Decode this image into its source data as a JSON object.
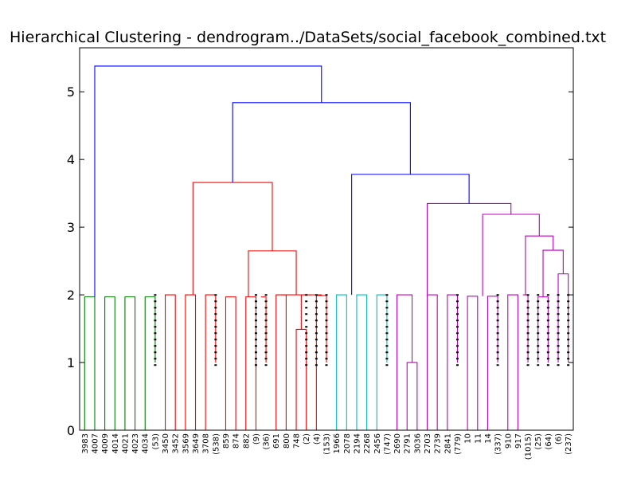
{
  "chart_data": {
    "type": "dendrogram",
    "title": "Hierarchical Clustering - dendrogram../DataSets/social_facebook_combined.txt",
    "xlabel": "",
    "ylabel": "",
    "ylim": [
      0,
      5.65
    ],
    "yticks": [
      0,
      1,
      2,
      3,
      4,
      5
    ],
    "leaf_labels": [
      "3983",
      "4007",
      "4009",
      "4014",
      "4021",
      "4023",
      "4034",
      "(53)",
      "3450",
      "3452",
      "3569",
      "3649",
      "3708",
      "(538)",
      "859",
      "874",
      "882",
      "(9)",
      "(36)",
      "691",
      "800",
      "748",
      "(2)",
      "(4)",
      "(153)",
      "1966",
      "2078",
      "2194",
      "2268",
      "2456",
      "(747)",
      "2690",
      "2791",
      "3036",
      "2703",
      "2739",
      "2841",
      "(779)",
      "10",
      "11",
      "14",
      "(337)",
      "910",
      "917",
      "(1015)",
      "(25)",
      "(64)",
      "(6)",
      "(237)"
    ],
    "colors": {
      "green": "#008000",
      "red": "#ff0000",
      "cyan": "#00bfbf",
      "magenta": "#bf00bf",
      "blue": "#0000ff"
    },
    "links": [
      {
        "a": 0,
        "b": 1,
        "ha": 0,
        "hb": 0,
        "h": 1.97,
        "color": "green"
      },
      {
        "a": 2,
        "b": 3,
        "ha": 0,
        "hb": 0,
        "h": 1.97,
        "color": "green"
      },
      {
        "a": 4,
        "b": 5,
        "ha": 0,
        "hb": 0,
        "h": 1.97,
        "color": "green"
      },
      {
        "a": 6,
        "b": 7,
        "ha": 0,
        "hb": 1.0,
        "h": 1.97,
        "color": "green"
      },
      {
        "a": 8,
        "b": 9,
        "ha": 0,
        "hb": 0,
        "h": 2.0,
        "color": "red"
      },
      {
        "a": 10,
        "b": 11,
        "ha": 0,
        "hb": 0,
        "h": 2.0,
        "color": "red"
      },
      {
        "a": 12,
        "b": 13,
        "ha": 0,
        "hb": 1.0,
        "h": 2.0,
        "color": "red"
      },
      {
        "a": 14,
        "b": 15,
        "ha": 0,
        "hb": 0,
        "h": 1.97,
        "color": "red"
      },
      {
        "a": 16,
        "b": 17,
        "ha": 0,
        "hb": 0,
        "h": 1.97,
        "color": "red"
      },
      {
        "a": 17.5,
        "b": 18,
        "ha": 1.97,
        "hb": 1.0,
        "h": 1.97,
        "color": "red"
      },
      {
        "a": 19,
        "b": 20,
        "ha": 0,
        "hb": 0,
        "h": 2.0,
        "color": "red"
      },
      {
        "a": 21,
        "b": 22,
        "ha": 0,
        "hb": 0,
        "h": 1.49,
        "color": "red"
      },
      {
        "a": 23,
        "b": 24,
        "ha": 0,
        "hb": 1.0,
        "h": 1.99,
        "color": "red"
      },
      {
        "a": 21.5,
        "b": 23.5,
        "ha": 1.49,
        "hb": 1.99,
        "h": 2.0,
        "color": "red"
      },
      {
        "a": 19.5,
        "b": 22.5,
        "ha": 2.0,
        "hb": 2.0,
        "h": 2.0,
        "color": "red"
      },
      {
        "a": 16.25,
        "b": 21.0,
        "ha": 1.97,
        "hb": 2.0,
        "h": 2.65,
        "color": "red"
      },
      {
        "a": 10.75,
        "b": 18.625,
        "ha": 2.0,
        "hb": 2.65,
        "h": 3.66,
        "color": "red"
      },
      {
        "a": 25,
        "b": 26,
        "ha": 0,
        "hb": 0,
        "h": 2.0,
        "color": "cyan"
      },
      {
        "a": 27,
        "b": 28,
        "ha": 0,
        "hb": 0,
        "h": 2.0,
        "color": "cyan"
      },
      {
        "a": 29,
        "b": 30,
        "ha": 0,
        "hb": 1.0,
        "h": 2.0,
        "color": "cyan"
      },
      {
        "a": 32,
        "b": 33,
        "ha": 0,
        "hb": 0,
        "h": 1.0,
        "color": "magenta"
      },
      {
        "a": 31,
        "b": 32.5,
        "ha": 0,
        "hb": 1.0,
        "h": 2.0,
        "color": "magenta"
      },
      {
        "a": 34,
        "b": 35,
        "ha": 0,
        "hb": 0,
        "h": 2.0,
        "color": "magenta"
      },
      {
        "a": 36,
        "b": 37,
        "ha": 0,
        "hb": 1.0,
        "h": 2.0,
        "color": "magenta"
      },
      {
        "a": 38,
        "b": 39,
        "ha": 0,
        "hb": 0,
        "h": 1.98,
        "color": "magenta"
      },
      {
        "a": 40,
        "b": 41,
        "ha": 0,
        "hb": 1.0,
        "h": 1.98,
        "color": "magenta"
      },
      {
        "a": 42,
        "b": 43,
        "ha": 0,
        "hb": 0,
        "h": 2.0,
        "color": "magenta"
      },
      {
        "a": 43.5,
        "b": 44,
        "ha": 2.0,
        "hb": 1.0,
        "h": 2.0,
        "color": "magenta"
      },
      {
        "a": 45,
        "b": 46,
        "ha": 1.0,
        "hb": 1.0,
        "h": 1.97,
        "color": "magenta"
      },
      {
        "a": 47,
        "b": 48,
        "ha": 1.0,
        "hb": 1.0,
        "h": 2.31,
        "color": "magenta"
      },
      {
        "a": 45.5,
        "b": 47.5,
        "ha": 1.97,
        "hb": 2.31,
        "h": 2.66,
        "color": "magenta"
      },
      {
        "a": 43.75,
        "b": 46.5,
        "ha": 2.0,
        "hb": 2.66,
        "h": 2.87,
        "color": "magenta"
      },
      {
        "a": 39.5,
        "b": 45.125,
        "ha": 1.98,
        "hb": 2.87,
        "h": 3.19,
        "color": "magenta"
      },
      {
        "a": 34.0,
        "b": 42.3125,
        "ha": 2.0,
        "hb": 3.19,
        "h": 3.35,
        "color": "magenta"
      },
      {
        "a": 26.5,
        "b": 38.15625,
        "ha": 2.0,
        "hb": 3.35,
        "h": 3.78,
        "color": "blue"
      },
      {
        "a": 14.6875,
        "b": 32.328125,
        "ha": 3.66,
        "hb": 3.78,
        "h": 4.84,
        "color": "blue"
      },
      {
        "a": 1.0,
        "b": 23.5078,
        "ha": 1.97,
        "hb": 4.84,
        "h": 5.38,
        "color": "blue"
      }
    ]
  }
}
